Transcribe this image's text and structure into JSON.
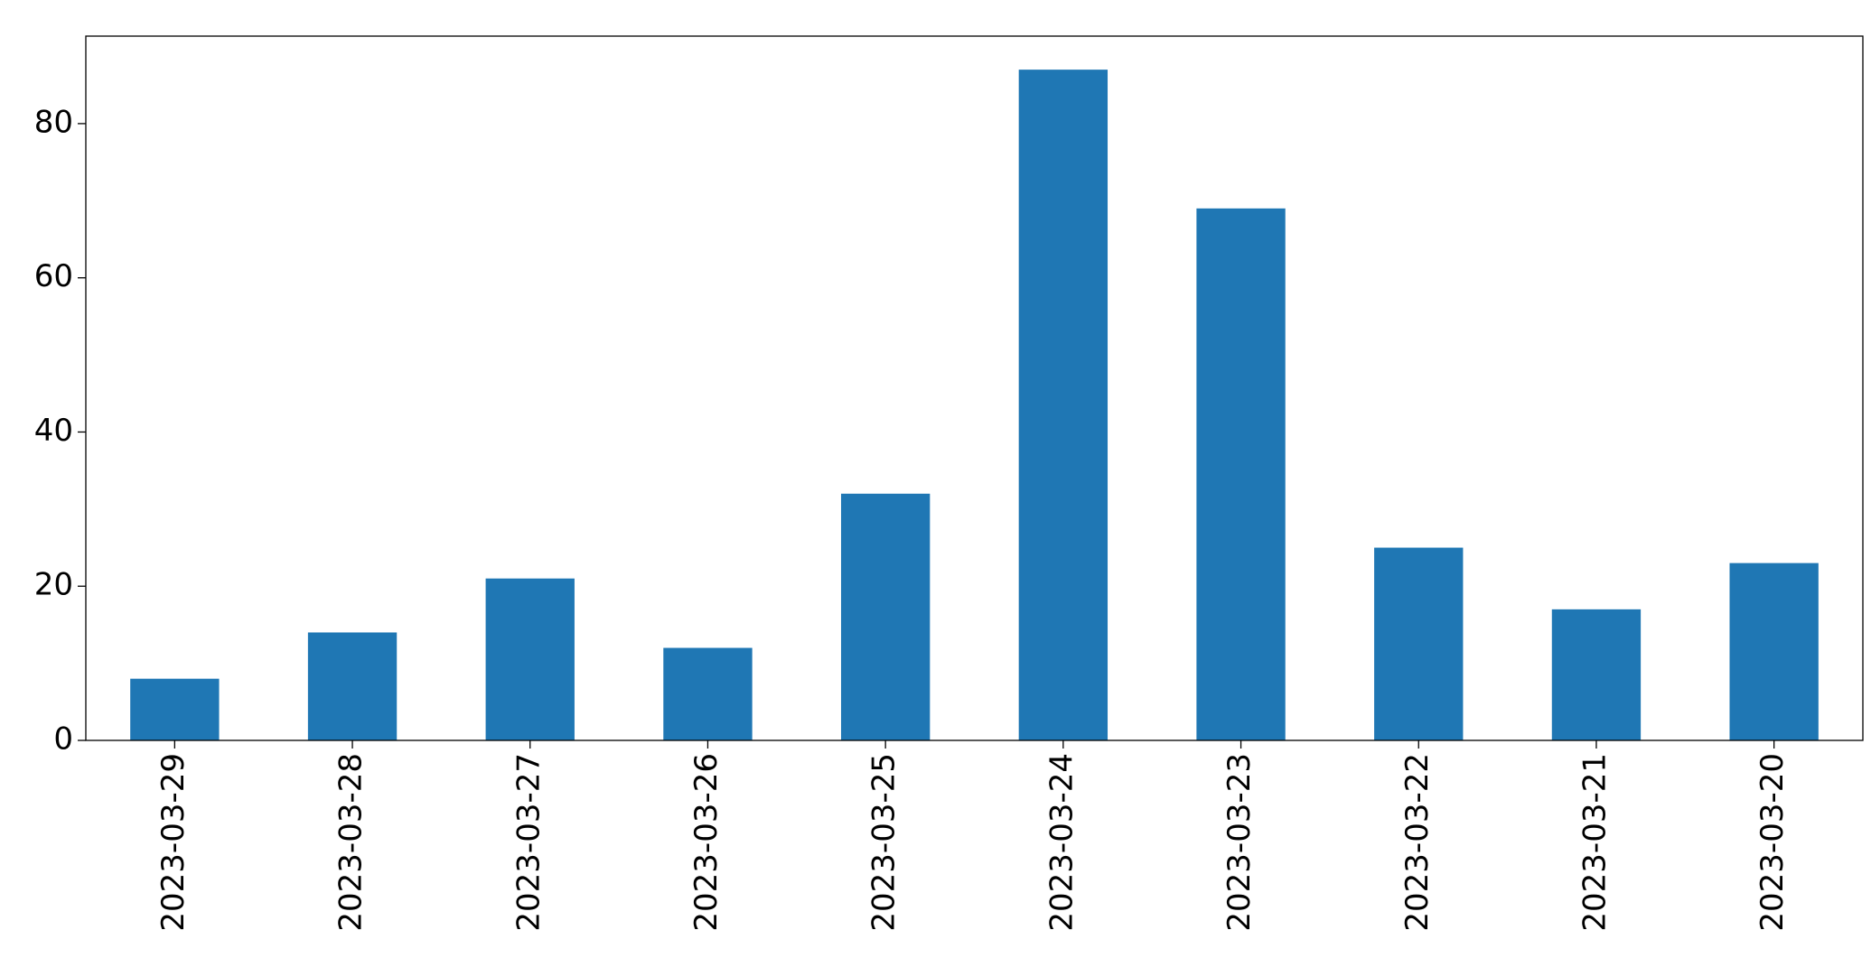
{
  "chart_data": {
    "type": "bar",
    "categories": [
      "2023-03-29",
      "2023-03-28",
      "2023-03-27",
      "2023-03-26",
      "2023-03-25",
      "2023-03-24",
      "2023-03-23",
      "2023-03-22",
      "2023-03-21",
      "2023-03-20"
    ],
    "values": [
      8,
      14,
      21,
      12,
      32,
      87,
      69,
      25,
      17,
      23
    ],
    "color": "#1f77b4",
    "ylim": [
      0,
      91.35
    ],
    "yticks": [
      0,
      20,
      40,
      60,
      80
    ],
    "grid": false
  }
}
